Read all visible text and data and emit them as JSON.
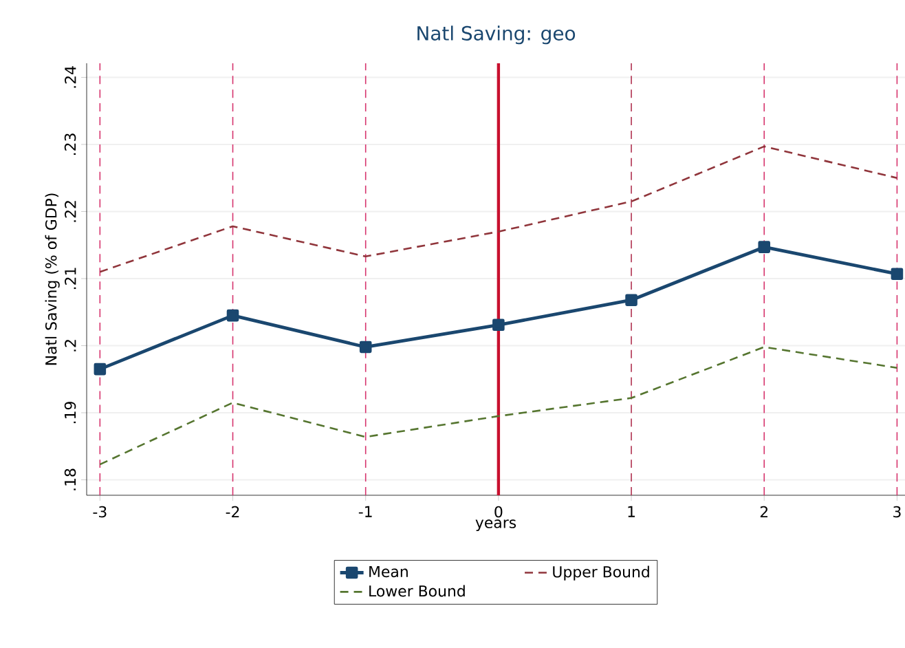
{
  "chart_data": {
    "type": "line",
    "title": "Natl Saving: geo",
    "xlabel": "years",
    "ylabel": "Natl Saving (% of GDP)",
    "x": [
      -3,
      -2,
      -1,
      0,
      1,
      2,
      3
    ],
    "series": [
      {
        "name": "Mean",
        "color": "#1a476f",
        "marker": "square",
        "line_style": "solid",
        "values": [
          0.1965,
          0.2045,
          0.1998,
          0.2031,
          0.2068,
          0.2147,
          0.2107
        ]
      },
      {
        "name": "Upper Bound",
        "color": "#90353b",
        "marker": "none",
        "line_style": "dashed",
        "values": [
          0.211,
          0.2178,
          0.2133,
          0.217,
          0.2215,
          0.2297,
          0.225
        ]
      },
      {
        "name": "Lower Bound",
        "color": "#55752f",
        "marker": "none",
        "line_style": "dashed",
        "values": [
          0.1823,
          0.1915,
          0.1864,
          0.1895,
          0.1922,
          0.1998,
          0.1967
        ]
      }
    ],
    "xlim": [
      -3.1,
      3.06
    ],
    "ylim": [
      0.1777,
      0.2421
    ],
    "xticks": [
      -3,
      -2,
      -1,
      0,
      1,
      2,
      3
    ],
    "yticks": [
      {
        "value": 0.18,
        "label": ".18"
      },
      {
        "value": 0.19,
        "label": ".19"
      },
      {
        "value": 0.2,
        "label": ".2"
      },
      {
        "value": 0.21,
        "label": ".21"
      },
      {
        "value": 0.22,
        "label": ".22"
      },
      {
        "value": 0.23,
        "label": ".23"
      },
      {
        "value": 0.24,
        "label": ".24"
      }
    ],
    "ref_lines": [
      {
        "axis": "x",
        "value": -3,
        "color": "#d6336c",
        "line_style": "dashed"
      },
      {
        "axis": "x",
        "value": -2,
        "color": "#d6336c",
        "line_style": "dashed"
      },
      {
        "axis": "x",
        "value": -1,
        "color": "#d6336c",
        "line_style": "dashed"
      },
      {
        "axis": "x",
        "value": 0,
        "color": "#c8102e",
        "line_style": "solid"
      },
      {
        "axis": "x",
        "value": 1,
        "color": "#b0304f",
        "line_style": "dashed"
      },
      {
        "axis": "x",
        "value": 2,
        "color": "#d6336c",
        "line_style": "dashed"
      },
      {
        "axis": "x",
        "value": 3,
        "color": "#d6336c",
        "line_style": "dashed"
      }
    ],
    "grid": "y",
    "legend": "bottom"
  }
}
